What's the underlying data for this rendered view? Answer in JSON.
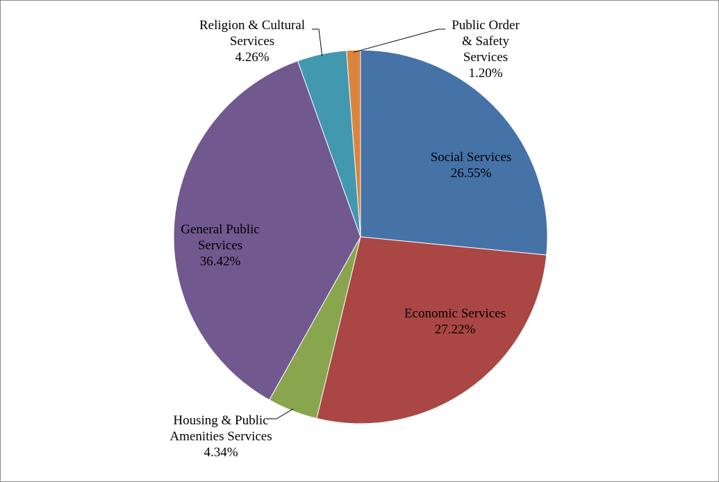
{
  "chart_data": {
    "type": "pie",
    "title": "",
    "legend": "none",
    "slices": [
      {
        "label_lines": [
          "Social Services"
        ],
        "value": 26.55,
        "value_label": "26.55%",
        "color": "#4572A7"
      },
      {
        "label_lines": [
          "Economic Services"
        ],
        "value": 27.22,
        "value_label": "27.22%",
        "color": "#AA4643"
      },
      {
        "label_lines": [
          "Housing & Public",
          "Amenities Services"
        ],
        "value": 4.34,
        "value_label": "4.34%",
        "color": "#89A54E"
      },
      {
        "label_lines": [
          "General Public",
          "Services"
        ],
        "value": 36.42,
        "value_label": "36.42%",
        "color": "#71588F"
      },
      {
        "label_lines": [
          "Religion & Cultural",
          "Services"
        ],
        "value": 4.26,
        "value_label": "4.26%",
        "color": "#4198AF"
      },
      {
        "label_lines": [
          "Public Order",
          "& Safety",
          "Services"
        ],
        "value": 1.2,
        "value_label": "1.20%",
        "color": "#DB843D"
      }
    ]
  }
}
